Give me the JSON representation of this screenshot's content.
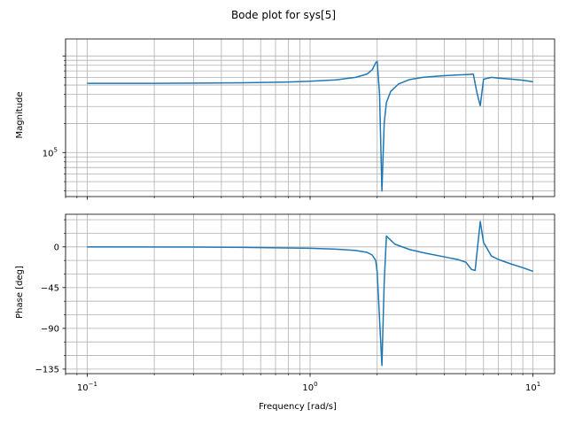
{
  "chart_data": {
    "title": "Bode plot for sys[5]",
    "type": "line",
    "xscale": "log",
    "xlabel": "Frequency [rad/s]",
    "xlim": [
      0.08,
      12.5
    ],
    "x_tick_labels": [
      {
        "value": 0.1,
        "base": "10",
        "exp": "−1"
      },
      {
        "value": 1,
        "base": "10",
        "exp": "0"
      },
      {
        "value": 10,
        "base": "10",
        "exp": "1"
      }
    ],
    "grid": true,
    "color": "#1f77b4",
    "panels": [
      {
        "name": "magnitude",
        "ylabel": "Magnitude",
        "yscale": "log",
        "ylim": [
          35000,
          1500000
        ],
        "y_tick_labels": [
          {
            "value": 100000,
            "base": "10",
            "exp": "5"
          }
        ],
        "series": [
          {
            "x": [
              0.1,
              0.2,
              0.3,
              0.5,
              0.8,
              1.0,
              1.3,
              1.6,
              1.8,
              1.9,
              1.97,
              2.0,
              2.05,
              2.1,
              2.15,
              2.2,
              2.3,
              2.5,
              2.8,
              3.2,
              3.8,
              4.5,
              5.0,
              5.4,
              5.6,
              5.8,
              6.0,
              6.5,
              7.0,
              8.0,
              9.0,
              10.0
            ],
            "y": [
              520000,
              521000,
              523000,
              527000,
              537000,
              547000,
              565000,
              600000,
              650000,
              720000,
              850000,
              880000,
              400000,
              40000,
              200000,
              330000,
              430000,
              515000,
              570000,
              600000,
              620000,
              635000,
              642000,
              648000,
              420000,
              305000,
              575000,
              600000,
              590000,
              575000,
              560000,
              540000
            ]
          }
        ]
      },
      {
        "name": "phase",
        "ylabel": "Phase [deg]",
        "yscale": "linear",
        "ylim": [
          -140,
          36
        ],
        "y_tick_labels": [
          {
            "value": 0,
            "text": "0"
          },
          {
            "value": -45,
            "text": "−45"
          },
          {
            "value": -90,
            "text": "−90"
          },
          {
            "value": -135,
            "text": "−135"
          }
        ],
        "series": [
          {
            "x": [
              0.1,
              0.3,
              0.5,
              1.0,
              1.3,
              1.6,
              1.8,
              1.9,
              1.97,
              2.0,
              2.05,
              2.1,
              2.15,
              2.2,
              2.4,
              2.8,
              3.3,
              4.0,
              4.6,
              5.0,
              5.3,
              5.5,
              5.8,
              6.0,
              6.5,
              7.0,
              8.0,
              9.0,
              10.0
            ],
            "y": [
              0,
              -0.2,
              -0.5,
              -1.5,
              -2.5,
              -4,
              -6,
              -9,
              -15,
              -28,
              -80,
              -131,
              -40,
              12,
              3,
              -3,
              -7,
              -11,
              -14,
              -17,
              -25,
              -26,
              28,
              5,
              -10,
              -14,
              -19,
              -23,
              -27
            ]
          }
        ]
      }
    ]
  }
}
